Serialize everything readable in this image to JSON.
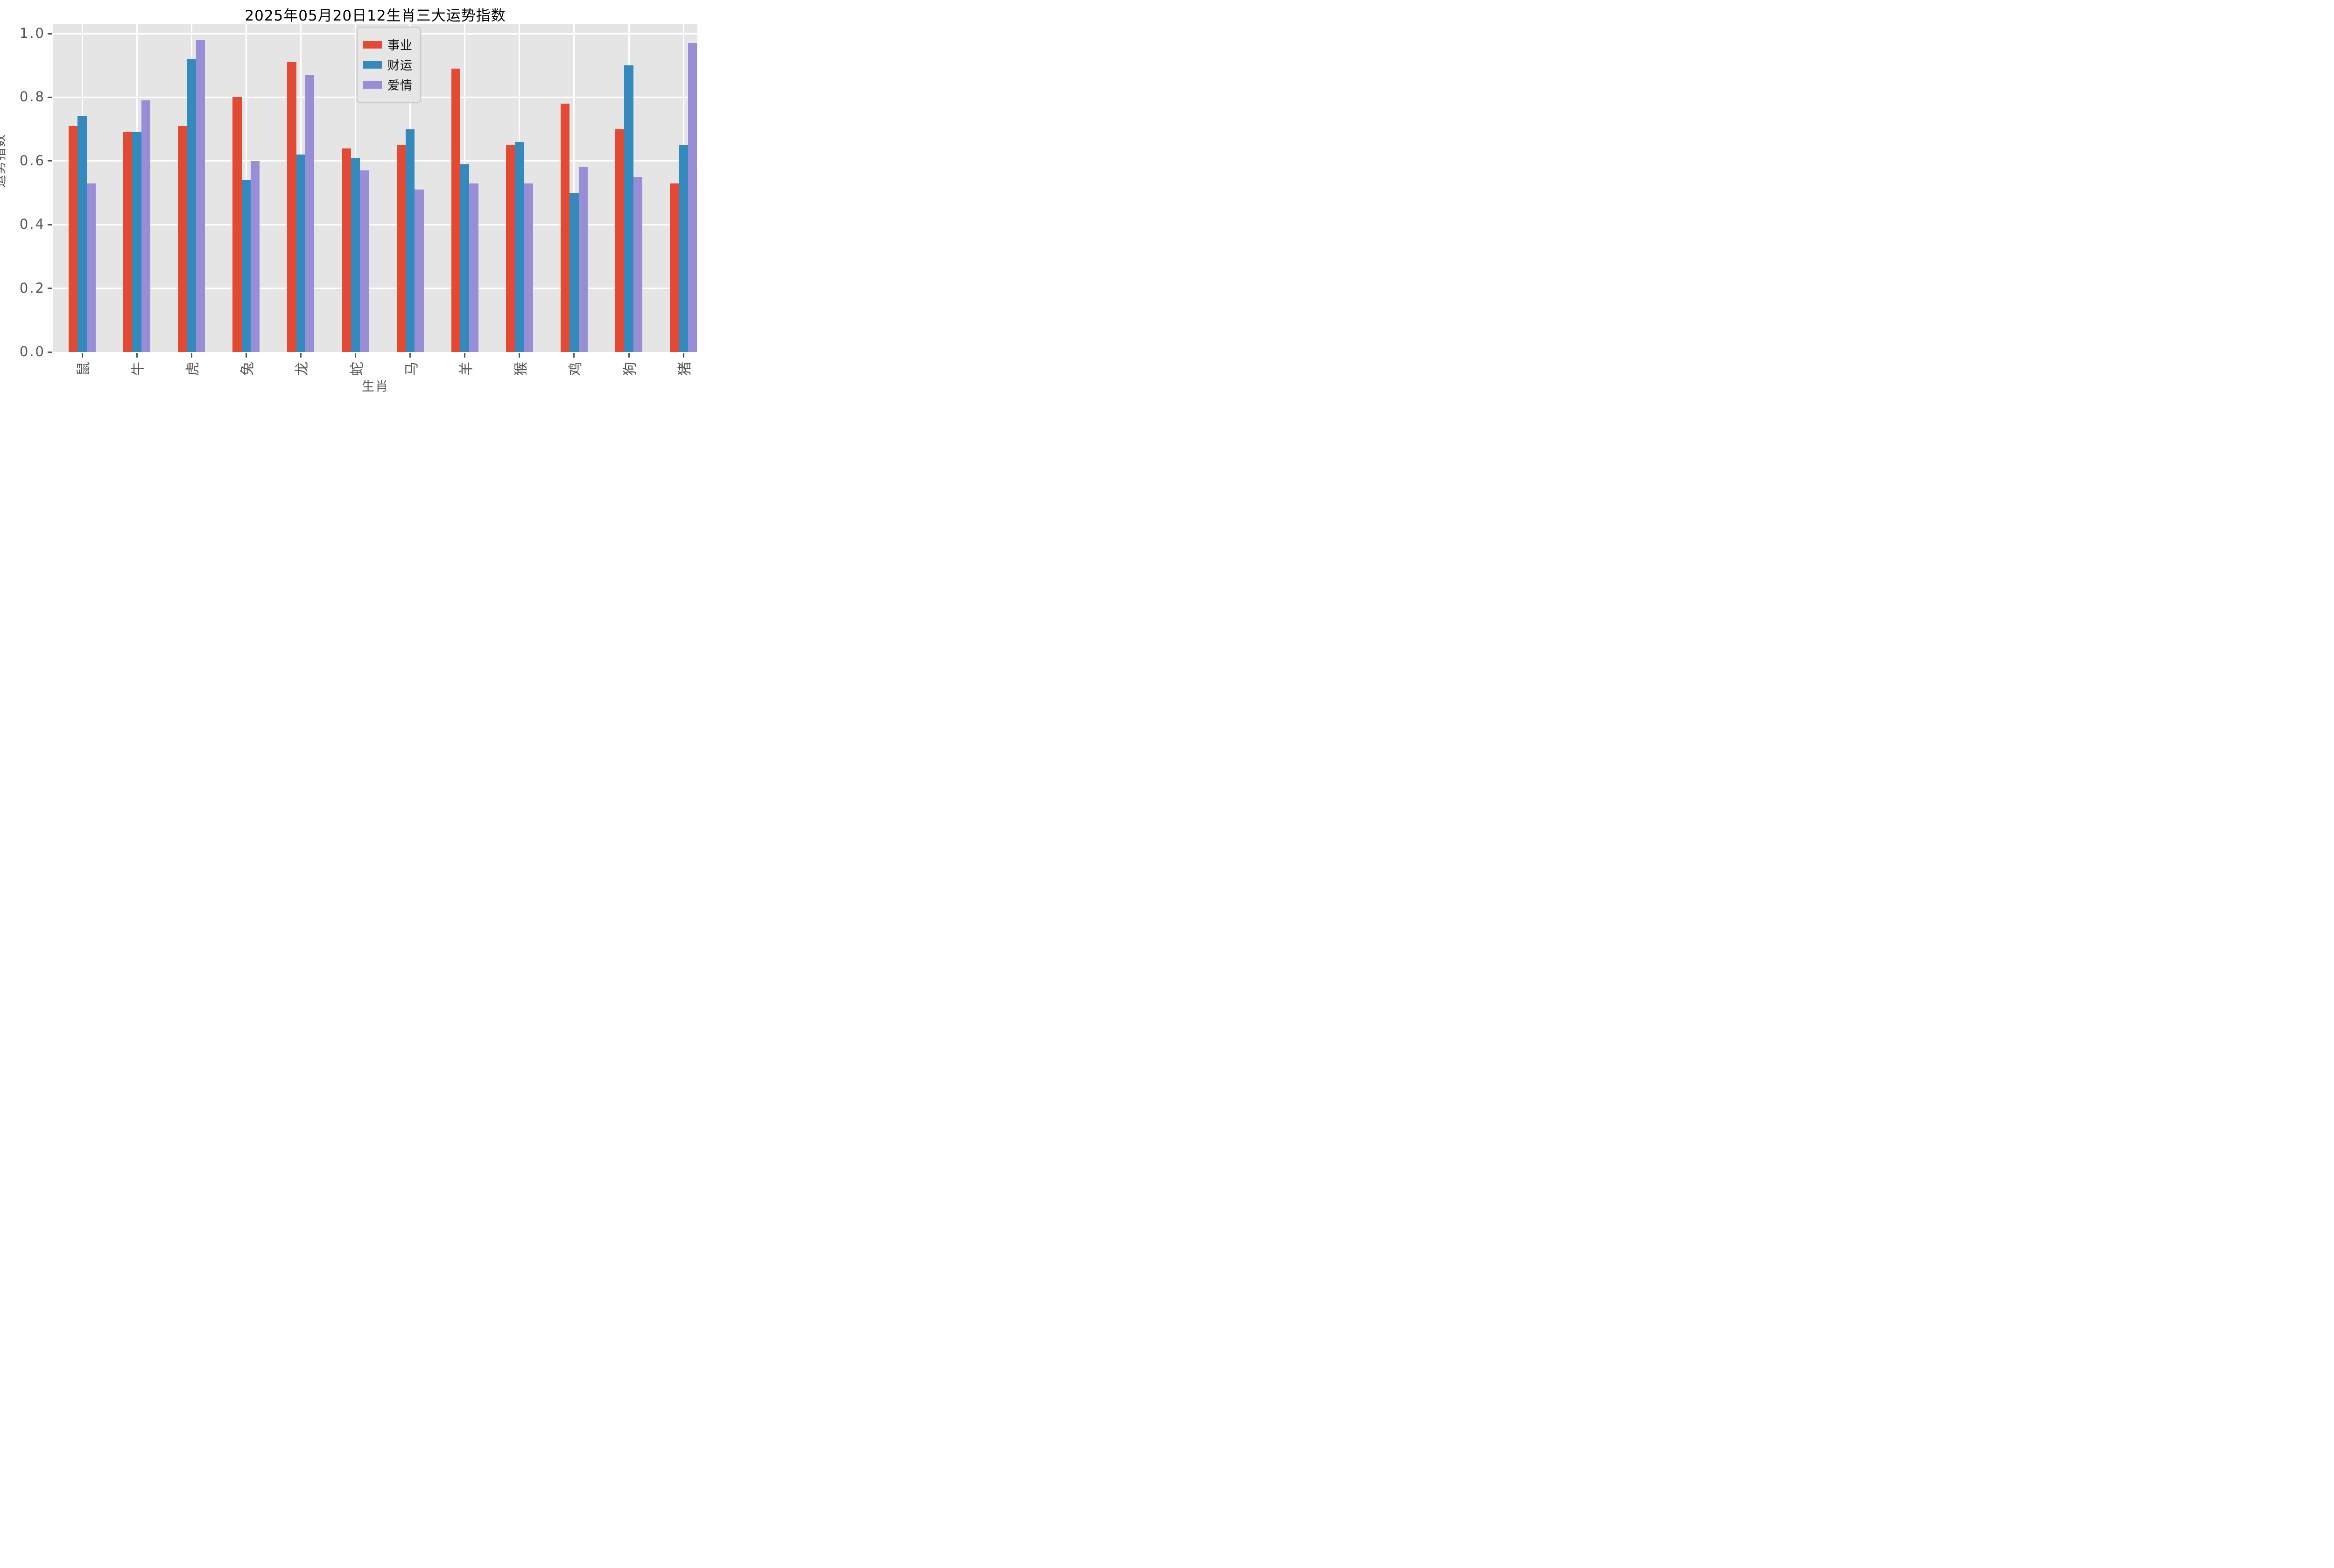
{
  "chart_data": {
    "type": "bar",
    "title": "2025年05月20日12生肖三大运势指数",
    "xlabel": "生肖",
    "ylabel": "运势指数",
    "categories": [
      "鼠",
      "牛",
      "虎",
      "兔",
      "龙",
      "蛇",
      "马",
      "羊",
      "猴",
      "鸡",
      "狗",
      "猪"
    ],
    "series": [
      {
        "name": "事业",
        "color": "#E24A33",
        "values": [
          0.71,
          0.69,
          0.71,
          0.8,
          0.91,
          0.64,
          0.65,
          0.89,
          0.65,
          0.78,
          0.7,
          0.53
        ]
      },
      {
        "name": "财运",
        "color": "#348ABD",
        "values": [
          0.74,
          0.69,
          0.92,
          0.54,
          0.62,
          0.61,
          0.7,
          0.59,
          0.66,
          0.5,
          0.9,
          0.65
        ]
      },
      {
        "name": "爱情",
        "color": "#988ED5",
        "values": [
          0.53,
          0.79,
          0.98,
          0.6,
          0.87,
          0.57,
          0.51,
          0.53,
          0.53,
          0.58,
          0.55,
          0.97
        ]
      }
    ],
    "ylim": [
      0.0,
      1.0
    ],
    "yticks": [
      0.0,
      0.2,
      0.4,
      0.6,
      0.8,
      1.0
    ],
    "ytick_labels": [
      "0.0",
      "0.2",
      "0.4",
      "0.6",
      "0.8",
      "1.0"
    ],
    "x_tick_rotation": 90,
    "grid": true,
    "legend_position": "upper center"
  },
  "style": {
    "figure_bg": "#FFFFFF",
    "axes_bg": "#E5E5E5",
    "grid_color": "#FFFFFF",
    "tick_color": "#555555",
    "title_color": "#000000"
  }
}
